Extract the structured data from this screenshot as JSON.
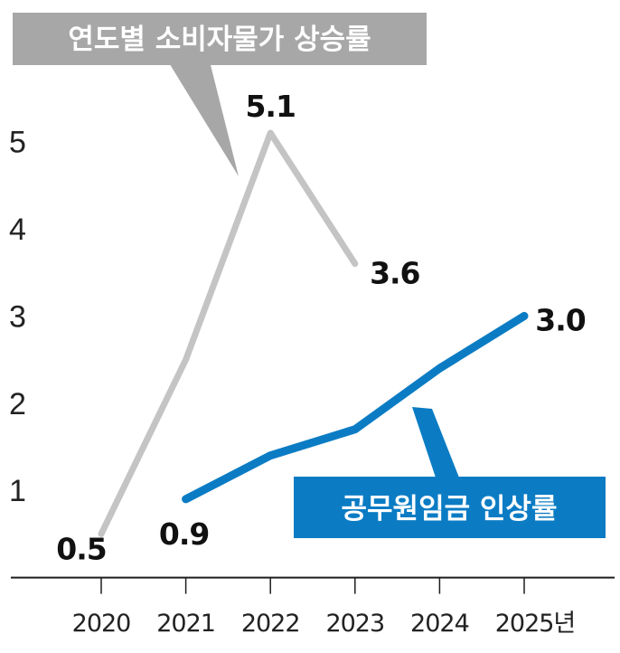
{
  "chart_data": {
    "type": "line",
    "title": "",
    "xlabel": "",
    "ylabel": "",
    "categories": [
      "2020",
      "2021",
      "2022",
      "2023",
      "2024",
      "2025년"
    ],
    "x": [
      2020,
      2021,
      2022,
      2023,
      2024,
      2025
    ],
    "y_ticks": [
      "1",
      "2",
      "3",
      "4",
      "5"
    ],
    "ylim": [
      0,
      6
    ],
    "grid": false,
    "series": [
      {
        "name": "연도별 소비자물가 상승률",
        "color": "#c4c4c4",
        "label_color": "#a7a7a7",
        "x": [
          2020,
          2021,
          2022,
          2023
        ],
        "values": [
          0.5,
          2.5,
          5.1,
          3.6
        ],
        "data_labels": [
          {
            "x": 2020,
            "text": "0.5"
          },
          {
            "x": 2022,
            "text": "5.1"
          },
          {
            "x": 2023,
            "text": "3.6"
          }
        ]
      },
      {
        "name": "공무원임금 인상률",
        "color": "#0b7cc4",
        "label_color": "#0b7cc4",
        "x": [
          2021,
          2022,
          2023,
          2024,
          2025
        ],
        "values": [
          0.9,
          1.4,
          1.7,
          2.4,
          3.0
        ],
        "data_labels": [
          {
            "x": 2021,
            "text": "0.9"
          },
          {
            "x": 2025,
            "text": "3.0"
          }
        ]
      }
    ]
  }
}
